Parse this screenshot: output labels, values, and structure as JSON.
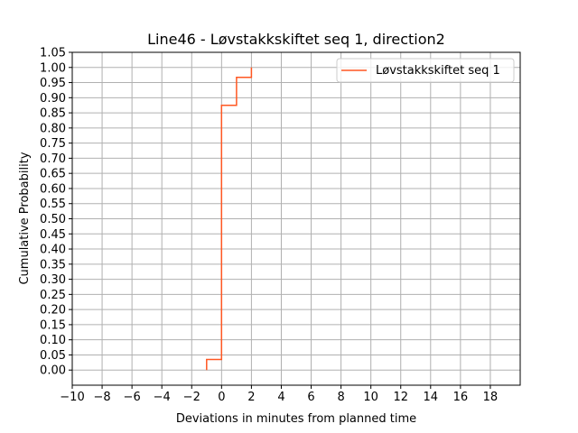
{
  "chart_data": {
    "type": "line",
    "title": "Line46 - Løvstakkskiftet seq 1, direction2",
    "xlabel": "Deviations in minutes from planned time",
    "ylabel": "Cumulative Probability",
    "xlim": [
      -10,
      20
    ],
    "ylim": [
      -0.05,
      1.05
    ],
    "xticks": [
      -10,
      -8,
      -6,
      -4,
      -2,
      0,
      2,
      4,
      6,
      8,
      10,
      12,
      14,
      16,
      18
    ],
    "xtick_labels": [
      "−10",
      "−8",
      "−6",
      "−4",
      "−2",
      "0",
      "2",
      "4",
      "6",
      "8",
      "10",
      "12",
      "14",
      "16",
      "18"
    ],
    "yticks": [
      0.0,
      0.05,
      0.1,
      0.15,
      0.2,
      0.25,
      0.3,
      0.35,
      0.4,
      0.45,
      0.5,
      0.55,
      0.6,
      0.65,
      0.7,
      0.75,
      0.8,
      0.85,
      0.9,
      0.95,
      1.0,
      1.05
    ],
    "ytick_labels": [
      "0.00",
      "0.05",
      "0.10",
      "0.15",
      "0.20",
      "0.25",
      "0.30",
      "0.35",
      "0.40",
      "0.45",
      "0.50",
      "0.55",
      "0.60",
      "0.65",
      "0.70",
      "0.75",
      "0.80",
      "0.85",
      "0.90",
      "0.95",
      "1.00",
      "1.05"
    ],
    "grid": true,
    "legend_position": "top-right",
    "series": [
      {
        "name": "Løvstakkskiftet seq 1",
        "color": "#ff5722",
        "step": "post",
        "x": [
          -1,
          -1,
          0,
          0,
          1,
          1,
          2,
          2
        ],
        "y": [
          0.0,
          0.035,
          0.035,
          0.875,
          0.875,
          0.967,
          0.967,
          1.0
        ]
      }
    ]
  }
}
